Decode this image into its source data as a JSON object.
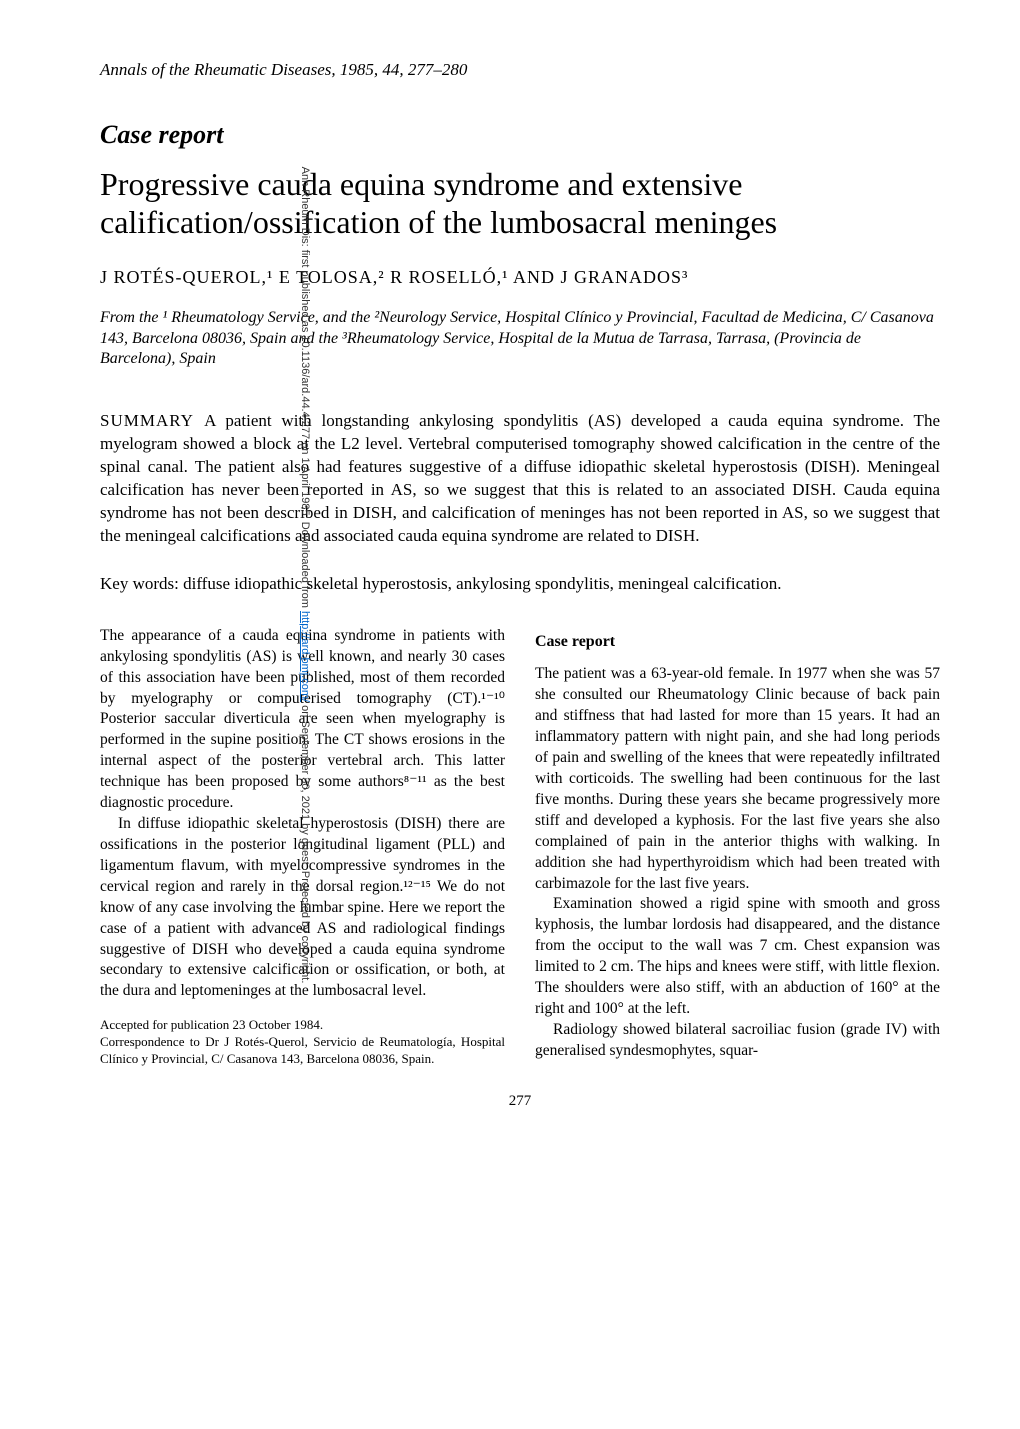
{
  "sidebar": {
    "prefix": "Ann Rheum Dis: first published as 10.1136/ard.44.4.277 on 1 April 1985. Downloaded from ",
    "link_text": "http://ard.bmj.com/",
    "suffix": " on September 30, 2021 by guest. Protected by copyright."
  },
  "journal_ref": "Annals of the Rheumatic Diseases, 1985, 44, 277–280",
  "case_report_label": "Case report",
  "title": "Progressive cauda equina syndrome and extensive calification/ossification of the lumbosacral meninges",
  "authors": "J ROTÉS-QUEROL,¹ E TOLOSA,² R ROSELLÓ,¹ AND J GRANADOS³",
  "affiliations": "From the ¹ Rheumatology Service, and the ²Neurology Service, Hospital Clínico y Provincial, Facultad de Medicina, C/ Casanova 143, Barcelona 08036, Spain and the ³Rheumatology Service, Hospital de la Mutua de Tarrasa, Tarrasa, (Provincia de Barcelona), Spain",
  "summary_label": "SUMMARY   ",
  "summary": "A patient with longstanding ankylosing spondylitis (AS) developed a cauda equina syndrome. The myelogram showed a block at the L2 level. Vertebral computerised tomography showed calcification in the centre of the spinal canal. The patient also had features suggestive of a diffuse idiopathic skeletal hyperostosis (DISH). Meningeal calcification has never been reported in AS, so we suggest that this is related to an associated DISH. Cauda equina syndrome has not been described in DISH, and calcification of meninges has not been reported in AS, so we suggest that the meningeal calcifications and associated cauda equina syndrome are related to DISH.",
  "keywords": "Key words: diffuse idiopathic skeletal hyperostosis, ankylosing spondylitis, meningeal calcification.",
  "left_col": {
    "p1": "The appearance of a cauda equina syndrome in patients with ankylosing spondylitis (AS) is well known, and nearly 30 cases of this association have been published, most of them recorded by myelography or computerised tomography (CT).¹⁻¹⁰ Posterior saccular diverticula are seen when myelography is performed in the supine position. The CT shows erosions in the internal aspect of the posterior vertebral arch. This latter technique has been proposed by some authors⁸⁻¹¹ as the best diagnostic procedure.",
    "p2": "In diffuse idiopathic skeletal hyperostosis (DISH) there are ossifications in the posterior longitudinal ligament (PLL) and ligamentum flavum, with myelocompressive syndromes in the cervical region and rarely in the dorsal region.¹²⁻¹⁵ We do not know of any case involving the lumbar spine. Here we report the case of a patient with advanced AS and radiological findings suggestive of DISH who developed a cauda equina syndrome secondary to extensive calcification or ossification, or both, at the dura and leptomeninges at the lumbosacral level.",
    "accepted": "Accepted for publication 23 October 1984.",
    "correspondence": "Correspondence to Dr J Rotés-Querol, Servicio de Reumatología, Hospital Clínico y Provincial, C/ Casanova 143, Barcelona 08036, Spain."
  },
  "right_col": {
    "heading": "Case report",
    "p1": "The patient was a 63-year-old female. In 1977 when she was 57 she consulted our Rheumatology Clinic because of back pain and stiffness that had lasted for more than 15 years. It had an inflammatory pattern with night pain, and she had long periods of pain and swelling of the knees that were repeatedly infiltrated with corticoids. The swelling had been continuous for the last five months. During these years she became progressively more stiff and developed a kyphosis. For the last five years she also complained of pain in the anterior thighs with walking. In addition she had hyperthyroidism which had been treated with carbimazole for the last five years.",
    "p2": "Examination showed a rigid spine with smooth and gross kyphosis, the lumbar lordosis had disappeared, and the distance from the occiput to the wall was 7 cm. Chest expansion was limited to 2 cm. The hips and knees were stiff, with little flexion. The shoulders were also stiff, with an abduction of 160° at the right and 100° at the left.",
    "p3": "Radiology showed bilateral sacroiliac fusion (grade IV) with generalised syndesmophytes, squar-"
  },
  "page_number": "277"
}
